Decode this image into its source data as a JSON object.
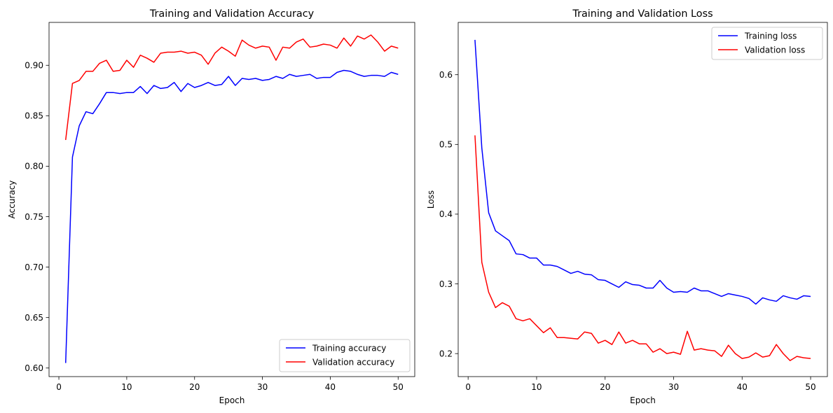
{
  "chart_data": [
    {
      "type": "line",
      "title": "Training and Validation Accuracy",
      "xlabel": "Epoch",
      "ylabel": "Accuracy",
      "xlim": [
        -1.45,
        52.45
      ],
      "ylim": [
        0.5915,
        0.9425
      ],
      "xticks": [
        0,
        10,
        20,
        30,
        40,
        50
      ],
      "yticks": [
        0.6,
        0.65,
        0.7,
        0.75,
        0.8,
        0.85,
        0.9
      ],
      "ytick_labels": [
        "0.60",
        "0.65",
        "0.70",
        "0.75",
        "0.80",
        "0.85",
        "0.90"
      ],
      "grid": false,
      "legend_position": "lower-right",
      "x": [
        1,
        2,
        3,
        4,
        5,
        6,
        7,
        8,
        9,
        10,
        11,
        12,
        13,
        14,
        15,
        16,
        17,
        18,
        19,
        20,
        21,
        22,
        23,
        24,
        25,
        26,
        27,
        28,
        29,
        30,
        31,
        32,
        33,
        34,
        35,
        36,
        37,
        38,
        39,
        40,
        41,
        42,
        43,
        44,
        45,
        46,
        47,
        48,
        49,
        50
      ],
      "series": [
        {
          "name": "Training accuracy",
          "color": "#0000ff",
          "values": [
            0.605,
            0.809,
            0.84,
            0.854,
            0.852,
            0.862,
            0.873,
            0.873,
            0.872,
            0.873,
            0.873,
            0.879,
            0.872,
            0.88,
            0.877,
            0.878,
            0.883,
            0.874,
            0.882,
            0.878,
            0.88,
            0.883,
            0.88,
            0.881,
            0.889,
            0.88,
            0.887,
            0.886,
            0.887,
            0.885,
            0.886,
            0.889,
            0.887,
            0.891,
            0.889,
            0.89,
            0.891,
            0.887,
            0.888,
            0.888,
            0.893,
            0.895,
            0.894,
            0.891,
            0.889,
            0.89,
            0.89,
            0.889,
            0.893,
            0.891
          ]
        },
        {
          "name": "Validation accuracy",
          "color": "#ff0000",
          "values": [
            0.826,
            0.882,
            0.885,
            0.894,
            0.894,
            0.902,
            0.905,
            0.894,
            0.895,
            0.905,
            0.898,
            0.91,
            0.907,
            0.903,
            0.912,
            0.913,
            0.913,
            0.914,
            0.912,
            0.913,
            0.91,
            0.901,
            0.912,
            0.918,
            0.914,
            0.909,
            0.925,
            0.92,
            0.917,
            0.919,
            0.918,
            0.905,
            0.918,
            0.917,
            0.923,
            0.926,
            0.918,
            0.919,
            0.921,
            0.92,
            0.917,
            0.927,
            0.919,
            0.929,
            0.926,
            0.93,
            0.923,
            0.914,
            0.919,
            0.917
          ]
        }
      ]
    },
    {
      "type": "line",
      "title": "Training and Validation Loss",
      "xlabel": "Epoch",
      "ylabel": "Loss",
      "xlim": [
        -1.45,
        52.45
      ],
      "ylim": [
        0.167,
        0.675
      ],
      "xticks": [
        0,
        10,
        20,
        30,
        40,
        50
      ],
      "yticks": [
        0.2,
        0.3,
        0.4,
        0.5,
        0.6
      ],
      "ytick_labels": [
        "0.2",
        "0.3",
        "0.4",
        "0.5",
        "0.6"
      ],
      "grid": false,
      "legend_position": "upper-right",
      "x": [
        1,
        2,
        3,
        4,
        5,
        6,
        7,
        8,
        9,
        10,
        11,
        12,
        13,
        14,
        15,
        16,
        17,
        18,
        19,
        20,
        21,
        22,
        23,
        24,
        25,
        26,
        27,
        28,
        29,
        30,
        31,
        32,
        33,
        34,
        35,
        36,
        37,
        38,
        39,
        40,
        41,
        42,
        43,
        44,
        45,
        46,
        47,
        48,
        49,
        50
      ],
      "series": [
        {
          "name": "Training loss",
          "color": "#0000ff",
          "values": [
            0.65,
            0.495,
            0.402,
            0.376,
            0.369,
            0.362,
            0.343,
            0.342,
            0.337,
            0.337,
            0.327,
            0.327,
            0.325,
            0.32,
            0.315,
            0.318,
            0.314,
            0.313,
            0.306,
            0.305,
            0.3,
            0.295,
            0.303,
            0.299,
            0.298,
            0.294,
            0.294,
            0.305,
            0.294,
            0.288,
            0.289,
            0.288,
            0.294,
            0.29,
            0.29,
            0.286,
            0.282,
            0.286,
            0.284,
            0.282,
            0.279,
            0.271,
            0.28,
            0.277,
            0.275,
            0.283,
            0.28,
            0.278,
            0.283,
            0.282
          ]
        },
        {
          "name": "Validation loss",
          "color": "#ff0000",
          "values": [
            0.513,
            0.331,
            0.288,
            0.266,
            0.273,
            0.268,
            0.25,
            0.247,
            0.25,
            0.24,
            0.23,
            0.237,
            0.223,
            0.223,
            0.222,
            0.221,
            0.231,
            0.229,
            0.215,
            0.219,
            0.213,
            0.231,
            0.215,
            0.219,
            0.214,
            0.214,
            0.202,
            0.207,
            0.2,
            0.202,
            0.199,
            0.232,
            0.205,
            0.207,
            0.205,
            0.204,
            0.196,
            0.212,
            0.2,
            0.193,
            0.195,
            0.201,
            0.195,
            0.197,
            0.213,
            0.2,
            0.19,
            0.196,
            0.194,
            0.193
          ]
        }
      ]
    }
  ]
}
